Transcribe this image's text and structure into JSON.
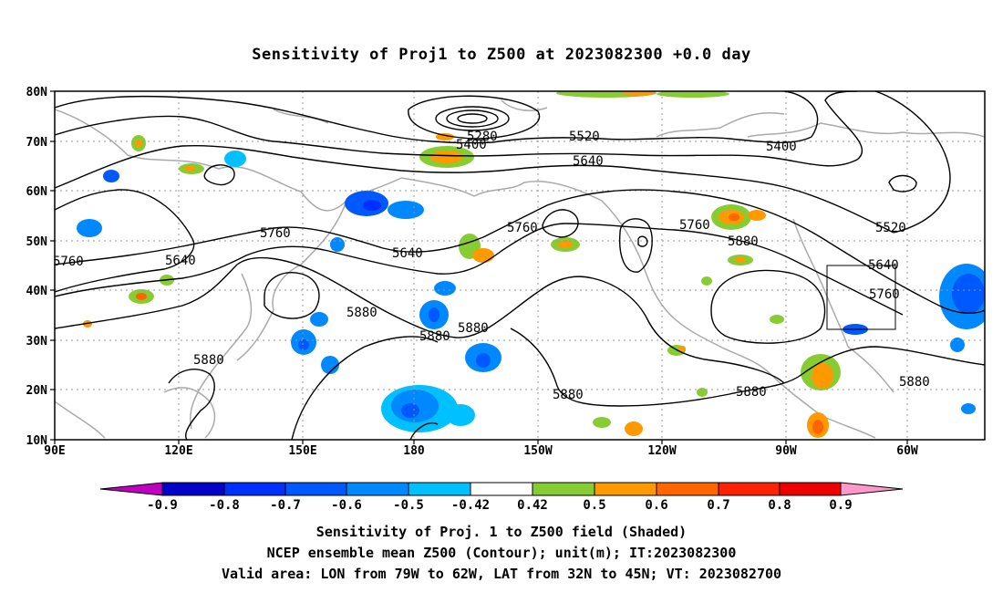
{
  "title": "Sensitivity of Proj1 to Z500 at 2023082300 +0.0 day",
  "lat_labels": [
    "80N",
    "70N",
    "60N",
    "50N",
    "40N",
    "30N",
    "20N",
    "10N"
  ],
  "lon_labels": [
    "90E",
    "120E",
    "150E",
    "180",
    "150W",
    "120W",
    "90W",
    "60W"
  ],
  "contour_labels": [
    "5280",
    "5400",
    "5520",
    "5400",
    "5640",
    "5760",
    "5640",
    "5760",
    "5640",
    "5760",
    "5760",
    "5880",
    "5520",
    "5640",
    "5760",
    "5880",
    "5880",
    "5880",
    "5880",
    "5880",
    "5880",
    "5880"
  ],
  "colorbar": {
    "labels": [
      "-0.9",
      "-0.8",
      "-0.7",
      "-0.6",
      "-0.5",
      "-0.42",
      "0.42",
      "0.5",
      "0.6",
      "0.7",
      "0.8",
      "0.9"
    ],
    "colors": [
      "#c000c0",
      "#0000c8",
      "#0030ff",
      "#0058ff",
      "#0088ff",
      "#00c0ff",
      "#ffffff",
      "#88cc33",
      "#ff9900",
      "#ff6600",
      "#ff2200",
      "#ee0000",
      "#ff99cc"
    ]
  },
  "captions": [
    "Sensitivity of Proj. 1 to Z500 field (Shaded)",
    "NCEP ensemble mean Z500 (Contour); unit(m); IT:2023082300",
    "Valid area: LON from 79W to 62W, LAT from 32N to 45N; VT: 2023082700"
  ]
}
